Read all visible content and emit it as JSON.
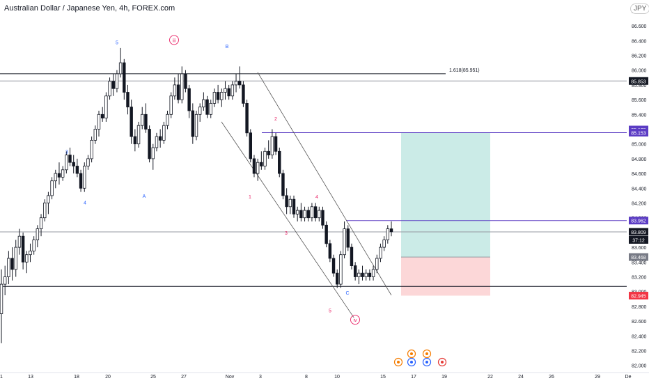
{
  "header": {
    "title": "Australian Dollar / Japanese Yen, 4h, FOREX.com",
    "currency": "JPY"
  },
  "chart_data": {
    "type": "candlestick",
    "ylim": [
      81.95,
      86.95
    ],
    "y_ticks": [
      82.0,
      82.2,
      82.4,
      82.6,
      82.8,
      83.0,
      83.2,
      83.4,
      83.6,
      83.8,
      84.0,
      84.2,
      84.4,
      84.6,
      84.8,
      85.0,
      85.2,
      85.4,
      85.6,
      85.8,
      86.0,
      86.2,
      86.4,
      86.6,
      86.8
    ],
    "y_tick_labels": [
      "82.000",
      "82.200",
      "82.400",
      "82.600",
      "82.800",
      "83.000",
      "83.200",
      "83.400",
      "83.600",
      "83.800",
      "84.000",
      "84.200",
      "84.400",
      "84.600",
      "84.800",
      "85.000",
      "85.200",
      "85.400",
      "85.600",
      "85.800",
      "86.000",
      "86.200",
      "86.400",
      "86.600",
      "86.800"
    ],
    "x_labels": [
      "1",
      "13",
      "18",
      "20",
      "25",
      "27",
      "Nov",
      "3",
      "8",
      "10",
      "15",
      "17",
      "19",
      "22",
      "24",
      "26",
      "29",
      "De"
    ],
    "price_tags": [
      {
        "label": "85.853",
        "value": 85.853,
        "color": "#131722"
      },
      {
        "label": "85.195",
        "value": 85.195,
        "color": "#5b3cc4"
      },
      {
        "label": "85.153",
        "value": 85.153,
        "color": "#5b3cc4"
      },
      {
        "label": "83.962",
        "value": 83.962,
        "color": "#5b3cc4"
      },
      {
        "label": "83.809",
        "value": 83.809,
        "color": "#131722"
      },
      {
        "label": "37:12",
        "value": 83.7,
        "color": "#131722"
      },
      {
        "label": "83.468",
        "value": 83.468,
        "color": "#787b86"
      },
      {
        "label": "82.945",
        "value": 82.945,
        "color": "#f23645"
      }
    ],
    "horizontal_lines": [
      {
        "value": 85.951,
        "color": "#131722",
        "label": "1.618(85.951)"
      },
      {
        "value": 85.853,
        "color": "#9598a1",
        "label": ""
      },
      {
        "value": 85.153,
        "color": "#5b3cc4",
        "label": ""
      },
      {
        "value": 83.962,
        "color": "#5b3cc4",
        "label": ""
      },
      {
        "value": 83.809,
        "color": "#9598a1",
        "label": ""
      },
      {
        "value": 83.07,
        "color": "#131722",
        "label": ""
      }
    ],
    "position_box": {
      "entry": 83.468,
      "target": 85.153,
      "stop": 82.945
    },
    "waves": [
      {
        "label": "5",
        "value": 86.35,
        "color": "#2962ff"
      },
      {
        "label": "iii",
        "value": 86.38,
        "color": "#e91e63",
        "circled": true
      },
      {
        "label": "B",
        "value": 86.3,
        "color": "#2962ff"
      },
      {
        "label": "3",
        "value": 84.87,
        "color": "#2962ff"
      },
      {
        "label": "4",
        "value": 84.18,
        "color": "#2962ff"
      },
      {
        "label": "A",
        "value": 84.27,
        "color": "#2962ff"
      },
      {
        "label": "2",
        "value": 85.32,
        "color": "#e91e63"
      },
      {
        "label": "1",
        "value": 84.26,
        "color": "#e91e63"
      },
      {
        "label": "4",
        "value": 84.26,
        "color": "#e91e63"
      },
      {
        "label": "3",
        "value": 83.77,
        "color": "#e91e63"
      },
      {
        "label": "C",
        "value": 82.96,
        "color": "#2962ff"
      },
      {
        "label": "5",
        "value": 82.72,
        "color": "#e91e63"
      },
      {
        "label": "iv",
        "value": 82.59,
        "color": "#e91e63",
        "circled": true
      }
    ],
    "candles": [
      [
        82.7,
        83.3,
        82.3,
        83.1
      ],
      [
        83.1,
        83.35,
        82.95,
        83.2
      ],
      [
        83.2,
        83.55,
        83.1,
        83.45
      ],
      [
        83.45,
        83.6,
        83.15,
        83.3
      ],
      [
        83.3,
        83.7,
        83.2,
        83.6
      ],
      [
        83.6,
        83.85,
        83.5,
        83.75
      ],
      [
        83.75,
        83.8,
        83.3,
        83.4
      ],
      [
        83.4,
        83.55,
        83.25,
        83.5
      ],
      [
        83.5,
        83.65,
        83.4,
        83.55
      ],
      [
        83.55,
        83.75,
        83.5,
        83.7
      ],
      [
        83.7,
        83.9,
        83.6,
        83.85
      ],
      [
        83.85,
        84.05,
        83.75,
        84.0
      ],
      [
        84.0,
        84.25,
        83.95,
        84.2
      ],
      [
        84.2,
        84.35,
        84.05,
        84.3
      ],
      [
        84.3,
        84.55,
        84.25,
        84.5
      ],
      [
        84.5,
        84.65,
        84.4,
        84.6
      ],
      [
        84.6,
        84.75,
        84.45,
        84.55
      ],
      [
        84.55,
        84.7,
        84.5,
        84.65
      ],
      [
        84.65,
        84.9,
        84.6,
        84.85
      ],
      [
        84.85,
        84.95,
        84.7,
        84.75
      ],
      [
        84.75,
        84.85,
        84.6,
        84.7
      ],
      [
        84.7,
        84.8,
        84.55,
        84.6
      ],
      [
        84.6,
        84.65,
        84.35,
        84.4
      ],
      [
        84.4,
        84.75,
        84.35,
        84.7
      ],
      [
        84.7,
        84.85,
        84.65,
        84.8
      ],
      [
        84.8,
        85.1,
        84.75,
        85.05
      ],
      [
        85.05,
        85.25,
        85.0,
        85.2
      ],
      [
        85.2,
        85.45,
        85.1,
        85.4
      ],
      [
        85.4,
        85.5,
        85.3,
        85.35
      ],
      [
        85.35,
        85.7,
        85.3,
        85.65
      ],
      [
        85.65,
        85.9,
        85.6,
        85.85
      ],
      [
        85.85,
        85.95,
        85.65,
        85.75
      ],
      [
        85.75,
        86.0,
        85.7,
        85.95
      ],
      [
        85.95,
        86.3,
        85.9,
        86.1
      ],
      [
        86.1,
        86.15,
        85.6,
        85.7
      ],
      [
        85.7,
        85.8,
        85.4,
        85.5
      ],
      [
        85.5,
        85.6,
        85.0,
        85.1
      ],
      [
        85.1,
        85.2,
        84.9,
        85.0
      ],
      [
        85.0,
        85.3,
        84.95,
        85.25
      ],
      [
        85.25,
        85.5,
        85.2,
        85.4
      ],
      [
        85.4,
        85.55,
        85.15,
        85.2
      ],
      [
        85.2,
        85.25,
        84.75,
        84.8
      ],
      [
        84.8,
        85.0,
        84.65,
        84.95
      ],
      [
        84.95,
        85.15,
        84.9,
        85.1
      ],
      [
        85.1,
        85.2,
        84.95,
        85.05
      ],
      [
        85.05,
        85.3,
        85.0,
        85.25
      ],
      [
        85.25,
        85.45,
        85.2,
        85.4
      ],
      [
        85.4,
        85.7,
        85.35,
        85.65
      ],
      [
        85.65,
        85.9,
        85.6,
        85.8
      ],
      [
        85.8,
        85.95,
        85.55,
        85.6
      ],
      [
        85.6,
        86.05,
        85.55,
        85.95
      ],
      [
        85.95,
        86.0,
        85.7,
        85.75
      ],
      [
        85.75,
        85.8,
        85.35,
        85.45
      ],
      [
        85.45,
        85.55,
        85.0,
        85.1
      ],
      [
        85.1,
        85.45,
        85.05,
        85.4
      ],
      [
        85.4,
        85.55,
        85.3,
        85.5
      ],
      [
        85.5,
        85.7,
        85.45,
        85.6
      ],
      [
        85.6,
        85.65,
        85.35,
        85.4
      ],
      [
        85.4,
        85.6,
        85.35,
        85.55
      ],
      [
        85.55,
        85.75,
        85.5,
        85.7
      ],
      [
        85.7,
        85.8,
        85.55,
        85.6
      ],
      [
        85.6,
        85.75,
        85.5,
        85.7
      ],
      [
        85.7,
        85.85,
        85.6,
        85.75
      ],
      [
        85.75,
        85.8,
        85.6,
        85.65
      ],
      [
        85.65,
        85.85,
        85.6,
        85.8
      ],
      [
        85.8,
        85.95,
        85.7,
        85.85
      ],
      [
        85.85,
        86.05,
        85.75,
        85.8
      ],
      [
        85.8,
        85.85,
        85.5,
        85.55
      ],
      [
        85.55,
        85.6,
        85.1,
        85.15
      ],
      [
        85.15,
        85.2,
        84.75,
        84.8
      ],
      [
        84.8,
        84.85,
        84.55,
        84.6
      ],
      [
        84.6,
        84.8,
        84.5,
        84.75
      ],
      [
        84.75,
        84.9,
        84.65,
        84.7
      ],
      [
        84.7,
        84.95,
        84.65,
        84.9
      ],
      [
        84.9,
        85.05,
        84.8,
        84.85
      ],
      [
        84.85,
        85.2,
        84.8,
        85.1
      ],
      [
        85.1,
        85.15,
        84.85,
        84.9
      ],
      [
        84.9,
        84.95,
        84.55,
        84.6
      ],
      [
        84.6,
        84.65,
        84.25,
        84.3
      ],
      [
        84.3,
        84.4,
        84.05,
        84.15
      ],
      [
        84.15,
        84.3,
        84.05,
        84.25
      ],
      [
        84.25,
        84.3,
        84.0,
        84.05
      ],
      [
        84.05,
        84.15,
        83.95,
        84.1
      ],
      [
        84.1,
        84.2,
        83.95,
        84.0
      ],
      [
        84.0,
        84.15,
        83.95,
        84.1
      ],
      [
        84.1,
        84.15,
        83.95,
        84.0
      ],
      [
        84.0,
        84.2,
        83.95,
        84.15
      ],
      [
        84.15,
        84.2,
        83.95,
        84.0
      ],
      [
        84.0,
        84.15,
        83.95,
        84.1
      ],
      [
        84.1,
        84.15,
        83.85,
        83.9
      ],
      [
        83.9,
        83.95,
        83.6,
        83.65
      ],
      [
        83.65,
        83.7,
        83.4,
        83.45
      ],
      [
        83.45,
        83.5,
        83.2,
        83.25
      ],
      [
        83.25,
        83.3,
        83.05,
        83.1
      ],
      [
        83.1,
        83.55,
        83.05,
        83.5
      ],
      [
        83.5,
        83.95,
        83.45,
        83.85
      ],
      [
        83.85,
        83.9,
        83.55,
        83.6
      ],
      [
        83.6,
        83.65,
        83.3,
        83.35
      ],
      [
        83.35,
        83.4,
        83.15,
        83.2
      ],
      [
        83.2,
        83.3,
        83.1,
        83.25
      ],
      [
        83.25,
        83.35,
        83.15,
        83.2
      ],
      [
        83.2,
        83.3,
        83.15,
        83.25
      ],
      [
        83.25,
        83.3,
        83.15,
        83.2
      ],
      [
        83.2,
        83.35,
        83.15,
        83.3
      ],
      [
        83.3,
        83.5,
        83.25,
        83.45
      ],
      [
        83.45,
        83.65,
        83.4,
        83.6
      ],
      [
        83.6,
        83.75,
        83.55,
        83.7
      ],
      [
        83.7,
        83.9,
        83.65,
        83.85
      ],
      [
        83.85,
        83.95,
        83.75,
        83.81
      ]
    ]
  }
}
